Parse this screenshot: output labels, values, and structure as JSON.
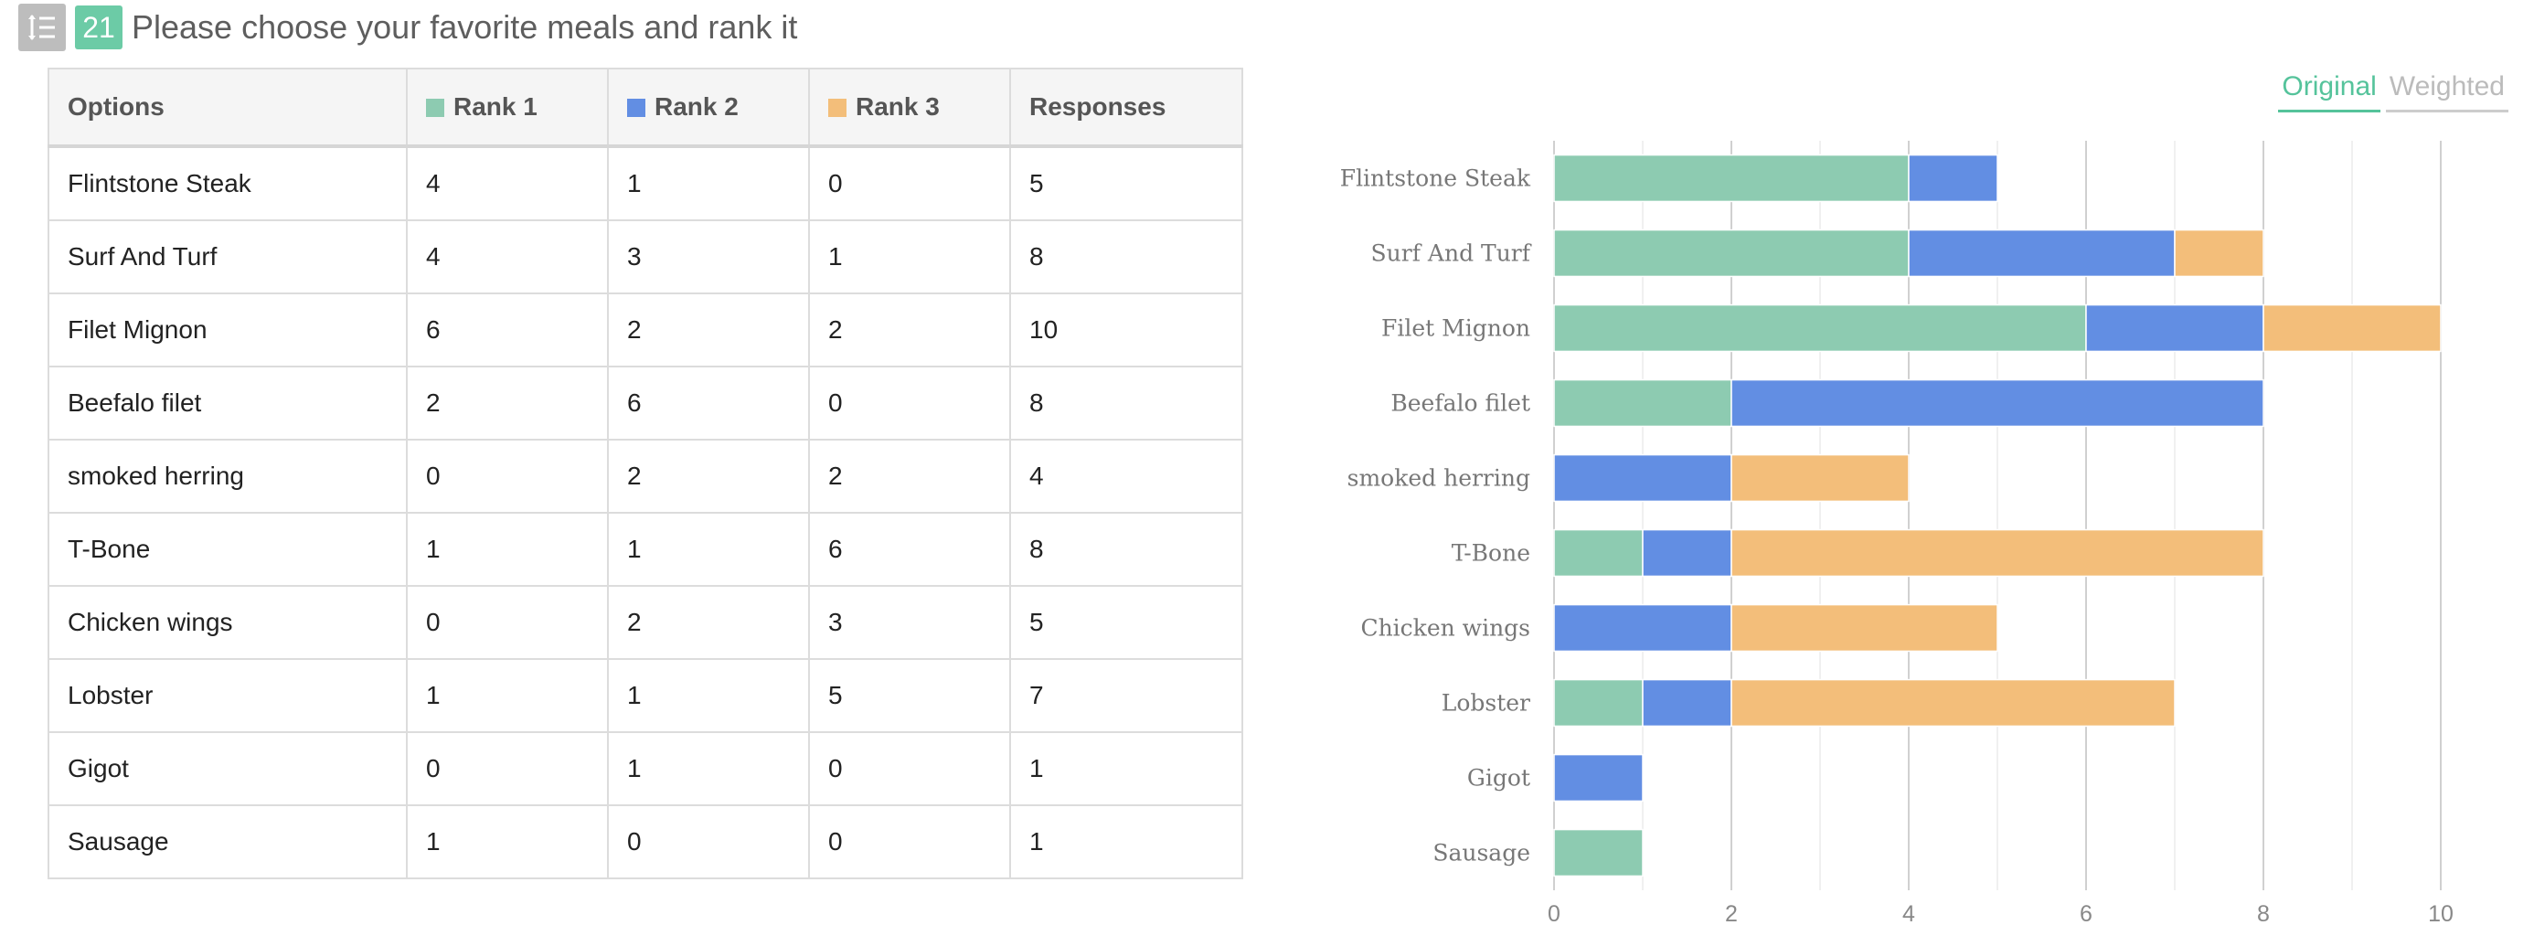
{
  "header": {
    "question_number": "21",
    "title": "Please choose your favorite meals and rank it",
    "type_icon": "ranking-list-icon"
  },
  "table": {
    "headers": [
      "Options",
      "Rank 1",
      "Rank 2",
      "Rank 3",
      "Responses"
    ],
    "rows": [
      [
        "Flintstone Steak",
        "4",
        "1",
        "0",
        "5"
      ],
      [
        "Surf And Turf",
        "4",
        "3",
        "1",
        "8"
      ],
      [
        "Filet Mignon",
        "6",
        "2",
        "2",
        "10"
      ],
      [
        "Beefalo filet",
        "2",
        "6",
        "0",
        "8"
      ],
      [
        "smoked herring",
        "0",
        "2",
        "2",
        "4"
      ],
      [
        "T-Bone",
        "1",
        "1",
        "6",
        "8"
      ],
      [
        "Chicken wings",
        "0",
        "2",
        "3",
        "5"
      ],
      [
        "Lobster",
        "1",
        "1",
        "5",
        "7"
      ],
      [
        "Gigot",
        "0",
        "1",
        "0",
        "1"
      ],
      [
        "Sausage",
        "1",
        "0",
        "0",
        "1"
      ]
    ]
  },
  "tabs": {
    "original": "Original",
    "weighted": "Weighted",
    "active": "original"
  },
  "colors": {
    "rank1": "#8dcbb1",
    "rank2": "#628ee3",
    "rank3": "#f3be7a",
    "accent": "#55c39b",
    "grid": "#dddddd"
  },
  "chart_data": {
    "type": "bar",
    "orientation": "horizontal",
    "stacked": true,
    "categories": [
      "Flintstone Steak",
      "Surf And Turf",
      "Filet Mignon",
      "Beefalo filet",
      "smoked herring",
      "T-Bone",
      "Chicken wings",
      "Lobster",
      "Gigot",
      "Sausage"
    ],
    "series": [
      {
        "name": "Rank 1",
        "values": [
          4,
          4,
          6,
          2,
          0,
          1,
          0,
          1,
          0,
          1
        ]
      },
      {
        "name": "Rank 2",
        "values": [
          1,
          3,
          2,
          6,
          2,
          1,
          2,
          1,
          1,
          0
        ]
      },
      {
        "name": "Rank 3",
        "values": [
          0,
          1,
          2,
          0,
          2,
          6,
          3,
          5,
          0,
          0
        ]
      }
    ],
    "xlim": [
      0,
      10
    ],
    "xticks": [
      0,
      2,
      4,
      6,
      8,
      10
    ],
    "grid": true,
    "legend": "none",
    "title": "",
    "xlabel": "",
    "ylabel": ""
  }
}
